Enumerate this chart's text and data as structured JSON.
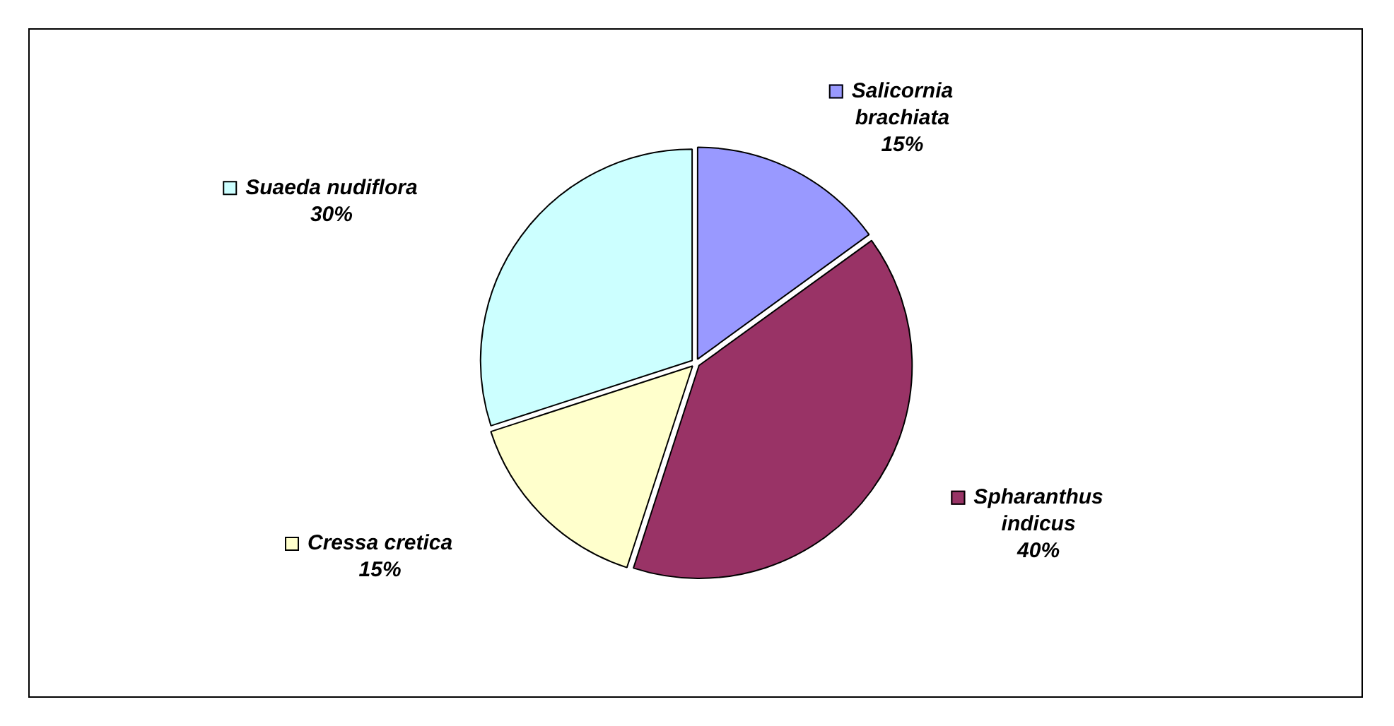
{
  "chart_data": {
    "type": "pie",
    "categories": [
      "Salicornia brachiata",
      "Spharanthus indicus",
      "Cressa cretica",
      "Suaeda nudiflora"
    ],
    "values": [
      15,
      40,
      15,
      30
    ],
    "value_labels": [
      "15%",
      "40%",
      "15%",
      "30%"
    ],
    "colors": [
      "#9999ff",
      "#993366",
      "#ffffcc",
      "#ccffff"
    ],
    "legend": "top left"
  }
}
